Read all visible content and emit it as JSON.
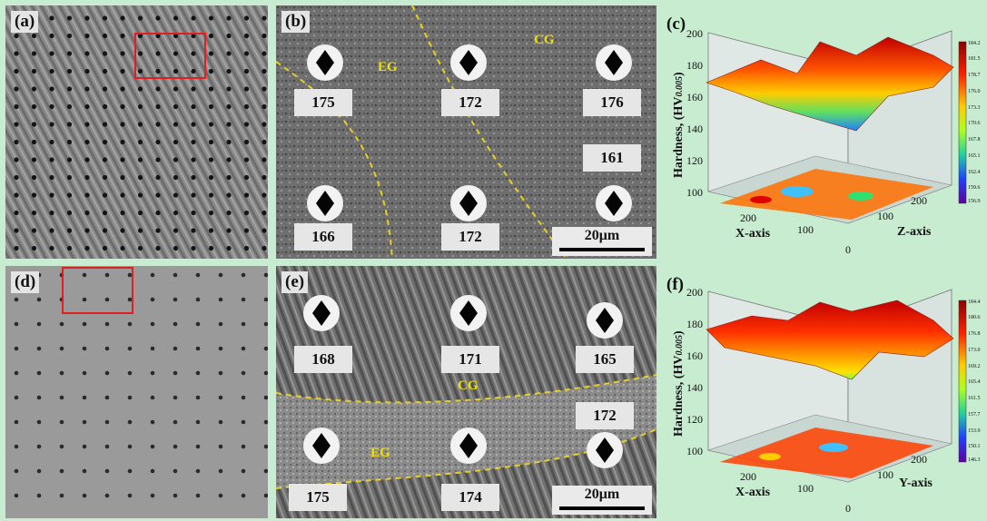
{
  "panels": {
    "a": {
      "label": "(a)"
    },
    "b": {
      "label": "(b)",
      "values": [
        "175",
        "172",
        "176",
        "161",
        "166",
        "172"
      ],
      "zones": [
        "EG",
        "CG"
      ],
      "scale": "20μm"
    },
    "c": {
      "label": "(c)",
      "ylabel_main": "Hardness, (HV",
      "ylabel_sub": "0.005",
      "ylabel_end": ")",
      "yticks": [
        "200",
        "180",
        "160",
        "140",
        "120",
        "100"
      ],
      "xticks": [
        "200",
        "100"
      ],
      "zticks": [
        "200",
        "100"
      ],
      "corner": "0",
      "xaxis": "X-axis",
      "zaxis": "Z-axis",
      "colorbar": [
        "184.2",
        "181.5",
        "178.7",
        "176.0",
        "173.3",
        "170.6",
        "167.8",
        "165.1",
        "162.4",
        "159.6",
        "156.9"
      ]
    },
    "d": {
      "label": "(d)"
    },
    "e": {
      "label": "(e)",
      "values": [
        "168",
        "171",
        "165",
        "172",
        "175",
        "174"
      ],
      "zones": [
        "CG",
        "EG"
      ],
      "scale": "20μm"
    },
    "f": {
      "label": "(f)",
      "ylabel_main": "Hardness, (HV",
      "ylabel_sub": "0.005",
      "ylabel_end": ")",
      "yticks": [
        "200",
        "180",
        "160",
        "140",
        "120",
        "100"
      ],
      "xticks": [
        "200",
        "100"
      ],
      "zticks": [
        "200",
        "100"
      ],
      "corner": "0",
      "xaxis": "X-axis",
      "zaxis": "Y-axis",
      "colorbar": [
        "184.4",
        "180.6",
        "176.8",
        "173.0",
        "169.2",
        "165.4",
        "161.5",
        "157.7",
        "153.9",
        "150.1",
        "146.3"
      ]
    }
  },
  "colors": {
    "background": "#c8ecd0",
    "highlight_box": "#e02020",
    "grain_boundary": "#e8d020"
  }
}
